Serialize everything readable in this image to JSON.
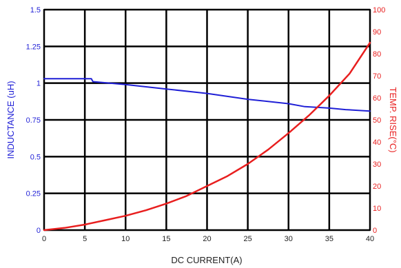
{
  "chart_data": {
    "type": "line",
    "xlabel": "DC CURRENT(A)",
    "xlim": [
      0,
      40
    ],
    "x_ticks": [
      "0",
      "5",
      "10",
      "15",
      "20",
      "25",
      "30",
      "35",
      "40"
    ],
    "left_axis": {
      "label": "INDUCTANCE (uH)",
      "ylim": [
        0,
        1.5
      ],
      "ticks": [
        "0",
        "0.25",
        "0.5",
        "0.75",
        "1",
        "1.25",
        "1.5"
      ],
      "color": "#1f1fd6"
    },
    "right_axis": {
      "label": "TEMP. RISE(°C)",
      "ylim": [
        0,
        100
      ],
      "ticks": [
        "0",
        "10",
        "20",
        "30",
        "40",
        "50",
        "60",
        "70",
        "80",
        "90",
        "100"
      ],
      "color": "#e81e1e"
    },
    "grid": true,
    "series": [
      {
        "axis": "left",
        "color": "#1f1fd6",
        "x": [
          0,
          5.8,
          6,
          10,
          15,
          20,
          25,
          30,
          32,
          35,
          37,
          40
        ],
        "values": [
          1.03,
          1.03,
          1.01,
          0.99,
          0.96,
          0.93,
          0.89,
          0.86,
          0.84,
          0.83,
          0.82,
          0.81
        ]
      },
      {
        "axis": "right",
        "color": "#e81e1e",
        "x": [
          0,
          2.5,
          5,
          7.5,
          10,
          12.5,
          15,
          17.5,
          20,
          22.5,
          25,
          27.5,
          30,
          32.5,
          35,
          37.5,
          40
        ],
        "values": [
          0,
          1,
          2.5,
          4.5,
          6.5,
          9,
          12,
          15.5,
          20,
          24.5,
          30,
          36.5,
          44,
          52,
          61,
          71,
          85
        ]
      }
    ]
  }
}
